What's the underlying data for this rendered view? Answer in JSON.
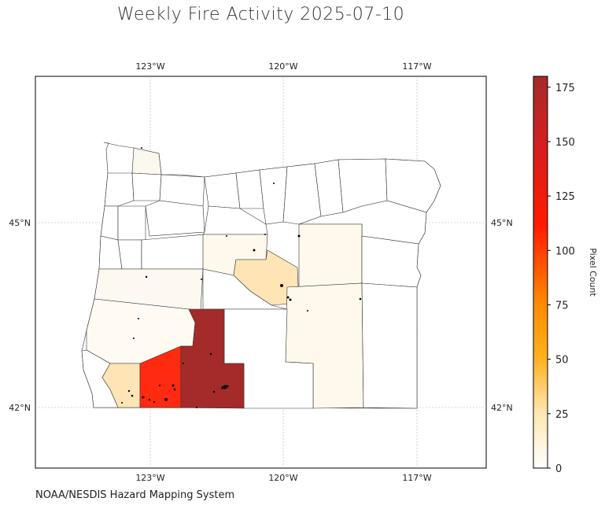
{
  "title": "Weekly Fire Activity 2025-07-10",
  "credit": "NOAA/NESDIS Hazard Mapping System",
  "map": {
    "region": "Oregon counties",
    "lon_ticks": [
      "123°W",
      "120°W",
      "117°W"
    ],
    "lat_ticks": [
      "45°N",
      "42°N"
    ],
    "gridlines": true,
    "fire_detections": "black dots"
  },
  "colorbar": {
    "label": "Pixel Count",
    "ticks": [
      "0",
      "25",
      "50",
      "75",
      "100",
      "125",
      "150",
      "175"
    ],
    "range": [
      0,
      180
    ],
    "colors": [
      "#ffffff",
      "#ffe6b3",
      "#ffb21f",
      "#ff7a00",
      "#ff1a00",
      "#a52a2a"
    ]
  },
  "colors": {
    "outline": "#333333",
    "grid": "#b0b0b0",
    "county_low": "#fff8ec",
    "county_mid_low": "#ffe4b5",
    "county_high": "#ff2a10",
    "county_max": "#a52a2a"
  }
}
